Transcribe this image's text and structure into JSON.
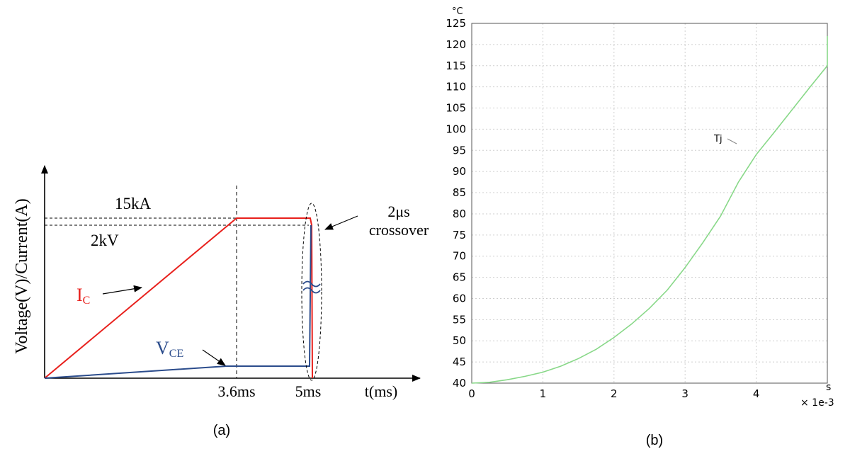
{
  "panel_a": {
    "caption": "(a)",
    "ylabel": "Voltage(V)/Current(A)",
    "xlabel": "t(ms)",
    "label_15ka": "15kA",
    "label_2kv": "2kV",
    "tick_3_6": "3.6ms",
    "tick_5": "5ms",
    "crossover_line1": "2μs",
    "crossover_line2": "crossover",
    "ic_main": "I",
    "ic_sub": "C",
    "vce_main": "V",
    "vce_sub": "CE",
    "colors": {
      "ic": "#e8201c",
      "vce": "#2b4c8c",
      "axis": "#000000"
    }
  },
  "chart_data": [
    {
      "type": "line",
      "x": [
        0,
        3.6,
        5,
        5.0001
      ],
      "series": [
        {
          "name": "IC",
          "values": [
            0,
            15,
            15,
            0
          ]
        },
        {
          "name": "VCE",
          "values": [
            0,
            0.2,
            0.2,
            2
          ]
        }
      ],
      "xlabel": "t(ms)",
      "ylabel": "Voltage(V)/Current(A)"
    },
    {
      "type": "line",
      "x": [
        0,
        0.25,
        0.5,
        0.75,
        1,
        1.25,
        1.5,
        1.75,
        2,
        2.25,
        2.5,
        2.75,
        3,
        3.25,
        3.5,
        3.75,
        4,
        4.25,
        4.5,
        4.75,
        5,
        5
      ],
      "series": [
        {
          "name": "Tj",
          "values": [
            40,
            40.2,
            40.8,
            41.6,
            42.6,
            44,
            45.8,
            48,
            50.8,
            54,
            57.7,
            62,
            67.3,
            73.2,
            79.5,
            87.5,
            94,
            99.2,
            104.5,
            109.8,
            115,
            122
          ]
        }
      ],
      "xlim": [
        0,
        5
      ],
      "ylim": [
        40,
        125
      ],
      "xticks": [
        "0",
        "1",
        "2",
        "3",
        "4"
      ],
      "yticks": [
        "40",
        "45",
        "50",
        "55",
        "60",
        "65",
        "70",
        "75",
        "80",
        "85",
        "90",
        "95",
        "100",
        "105",
        "110",
        "115",
        "120",
        "125"
      ],
      "y_unit": "°C",
      "x_unit": "s",
      "x_multiplier": "× 1e-3",
      "series_label": "Tj",
      "grid": true,
      "color": "#88d888",
      "caption": "(b)"
    }
  ]
}
